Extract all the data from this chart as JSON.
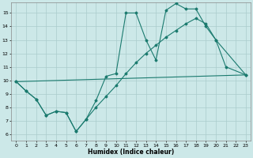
{
  "xlabel": "Humidex (Indice chaleur)",
  "bg_color": "#cce8e8",
  "line_color": "#1a7a6e",
  "grid_color": "#aacccc",
  "xlim": [
    -0.5,
    23.5
  ],
  "ylim": [
    5.5,
    15.8
  ],
  "yticks": [
    6,
    7,
    8,
    9,
    10,
    11,
    12,
    13,
    14,
    15
  ],
  "xticks": [
    0,
    1,
    2,
    3,
    4,
    5,
    6,
    7,
    8,
    9,
    10,
    11,
    12,
    13,
    14,
    15,
    16,
    17,
    18,
    19,
    20,
    21,
    22,
    23
  ],
  "line1_x": [
    0,
    1,
    2,
    3,
    4,
    5,
    6,
    7,
    8,
    9,
    10,
    11,
    12,
    13,
    14,
    15,
    16,
    17,
    18,
    19,
    20,
    21,
    23
  ],
  "line1_y": [
    9.9,
    9.2,
    8.6,
    7.4,
    7.7,
    7.6,
    6.2,
    7.1,
    8.5,
    10.3,
    10.5,
    15.0,
    15.0,
    13.0,
    11.5,
    15.2,
    15.7,
    15.3,
    15.3,
    14.0,
    13.0,
    11.0,
    10.4
  ],
  "line2_x": [
    0,
    1,
    2,
    3,
    4,
    5,
    6,
    7,
    8,
    9,
    10,
    11,
    12,
    13,
    14,
    15,
    16,
    17,
    18,
    19,
    20,
    23
  ],
  "line2_y": [
    9.9,
    9.2,
    8.6,
    7.4,
    7.7,
    7.6,
    6.2,
    7.1,
    8.0,
    8.8,
    9.6,
    10.5,
    11.3,
    12.0,
    12.6,
    13.2,
    13.7,
    14.2,
    14.6,
    14.2,
    13.0,
    10.4
  ],
  "line3_x": [
    0,
    23
  ],
  "line3_y": [
    9.9,
    10.4
  ]
}
